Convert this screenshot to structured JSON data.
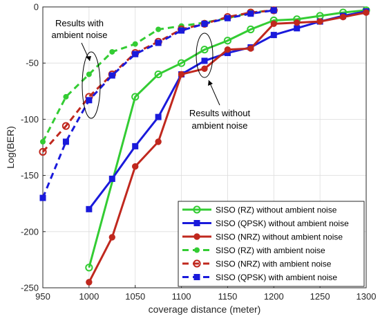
{
  "chart_data": {
    "type": "line",
    "title": "",
    "xlabel": "coverage distance (meter)",
    "ylabel": "Log(BER)",
    "xlim": [
      950,
      1300
    ],
    "ylim": [
      -250,
      0
    ],
    "xticks": [
      950,
      1000,
      1050,
      1100,
      1150,
      1200,
      1250,
      1300
    ],
    "yticks": [
      0,
      -50,
      -100,
      -150,
      -200,
      -250
    ],
    "grid": true,
    "legend_position": "bottom-right",
    "series": [
      {
        "name": "SISO (RZ) without ambient noise",
        "color": "#33cc33",
        "line": "solid",
        "marker": "circle-open",
        "x": [
          1000,
          1050,
          1075,
          1100,
          1125,
          1150,
          1175,
          1200,
          1225,
          1250,
          1275,
          1300
        ],
        "y": [
          -232,
          -80,
          -60,
          -50,
          -38,
          -30,
          -20,
          -12,
          -11,
          -8,
          -5,
          -3
        ]
      },
      {
        "name": "SISO (QPSK) without ambient noise",
        "color": "#1a1adb",
        "line": "solid",
        "marker": "square",
        "x": [
          1000,
          1025,
          1050,
          1075,
          1100,
          1125,
          1150,
          1175,
          1200,
          1225,
          1250,
          1275,
          1300
        ],
        "y": [
          -180,
          -153,
          -124,
          -98,
          -60,
          -48,
          -41,
          -36,
          -25,
          -19,
          -13,
          -8,
          -4
        ]
      },
      {
        "name": "SISO (NRZ) without ambient noise",
        "color": "#c0281e",
        "line": "solid",
        "marker": "circle",
        "x": [
          1000,
          1025,
          1050,
          1075,
          1100,
          1125,
          1150,
          1175,
          1200,
          1225,
          1250,
          1275,
          1300
        ],
        "y": [
          -245,
          -205,
          -142,
          -120,
          -60,
          -55,
          -38,
          -37,
          -15,
          -14,
          -13,
          -9,
          -5
        ]
      },
      {
        "name": "SISO (RZ) with ambient noise",
        "color": "#33cc33",
        "line": "dashed",
        "marker": "dot",
        "x": [
          950,
          975,
          1000,
          1025,
          1050,
          1075,
          1100,
          1125,
          1150,
          1175,
          1200
        ],
        "y": [
          -120,
          -80,
          -60,
          -40,
          -33,
          -20,
          -17,
          -14,
          -10,
          -5,
          -3
        ]
      },
      {
        "name": "SISO (NRZ) with ambient noise",
        "color": "#c0281e",
        "line": "dashed",
        "marker": "circle-open",
        "x": [
          950,
          975,
          1000,
          1025,
          1050,
          1075,
          1100,
          1125,
          1150,
          1175,
          1200
        ],
        "y": [
          -129,
          -106,
          -80,
          -60,
          -41,
          -31,
          -20,
          -15,
          -9,
          -5,
          -3
        ]
      },
      {
        "name": "SISO (QPSK) with ambient noise",
        "color": "#1a1adb",
        "line": "dashed",
        "marker": "square",
        "x": [
          950,
          975,
          1000,
          1025,
          1050,
          1075,
          1100,
          1125,
          1150,
          1175,
          1200
        ],
        "y": [
          -170,
          -120,
          -83,
          -61,
          -42,
          -32,
          -21,
          -15,
          -10,
          -6,
          -3
        ]
      }
    ],
    "annotations": [
      {
        "text": "Results with",
        "text2": "ambient noise"
      },
      {
        "text": "Results without",
        "text2": "ambient noise"
      }
    ]
  }
}
